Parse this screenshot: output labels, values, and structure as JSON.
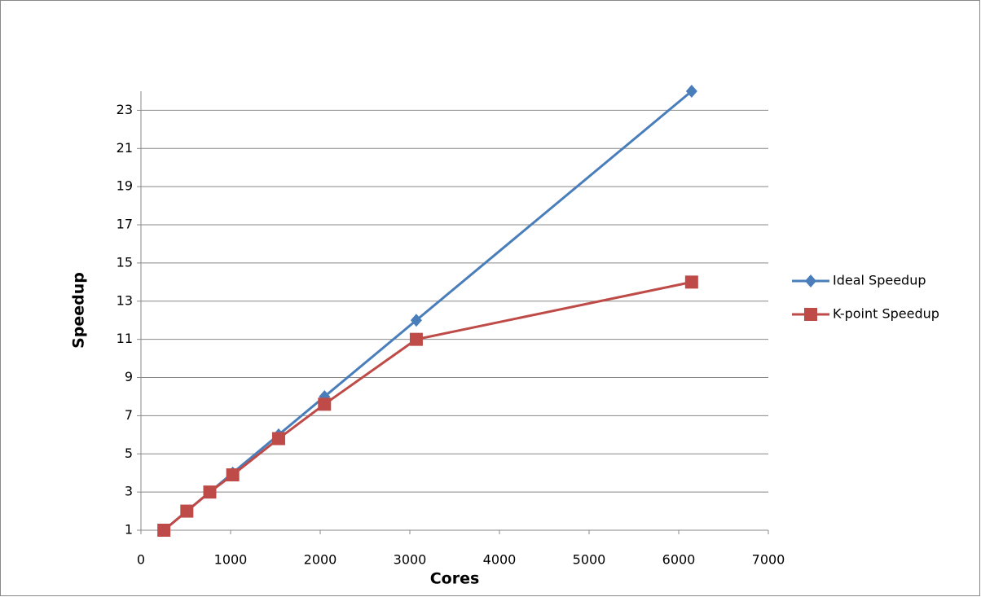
{
  "chart_data": {
    "type": "line",
    "x_label": "Cores",
    "y_label": "Speedup",
    "x": [
      256,
      512,
      768,
      1024,
      1536,
      2048,
      3072,
      6144
    ],
    "series": [
      {
        "name": "Ideal Speedup",
        "color": "#4a7ebb",
        "marker": "diamond",
        "values": [
          1,
          2,
          3,
          4,
          6,
          8,
          12,
          24
        ]
      },
      {
        "name": "K-point Speedup",
        "color": "#be4b48",
        "marker": "square",
        "values": [
          1,
          2,
          3,
          3.9,
          5.8,
          7.6,
          11,
          14
        ]
      }
    ],
    "xlim": [
      0,
      7000
    ],
    "xticks": [
      0,
      1000,
      2000,
      3000,
      4000,
      5000,
      6000,
      7000
    ],
    "ylim": [
      1,
      24
    ],
    "yticks": [
      1,
      3,
      5,
      7,
      9,
      11,
      13,
      15,
      17,
      19,
      21,
      23
    ],
    "grid": true,
    "legend": "right"
  }
}
